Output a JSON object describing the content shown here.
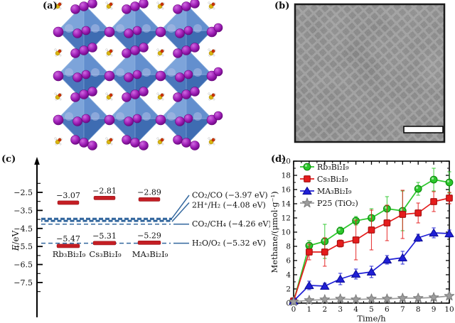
{
  "figure": {
    "panels": {
      "a": {
        "label": "(a)",
        "content": "crystal-structure",
        "colors": {
          "octahedron": "#4d7cc2",
          "octahedron_light": "#8fb2e2",
          "octahedron_mid": "#6d97d4",
          "octahedron_dark": "#2f5da5",
          "octahedron_deep": "#446fb5",
          "octahedron_edge": "#7aa2d6",
          "iodine": "#a020b8",
          "iodine_hi": "#d06ae0",
          "iodine_dark": "#69077e",
          "iodine_inner": "#aebde6",
          "cation_yellow": "#d8b511",
          "cation_red": "#cc3300",
          "cation_white": "#f5f5f5",
          "bond": "#aaaaaa"
        }
      },
      "b": {
        "label": "(b)",
        "content": "tem-image",
        "scale_bar": true,
        "colors": {
          "background": "#8b8b8b",
          "particle": "#6e6e6e",
          "border": "#1a1a1a",
          "scale_bar_fill": "#ffffff",
          "scale_bar_stroke": "#000000"
        }
      },
      "c": {
        "label": "(c)"
      },
      "d": {
        "label": "(d)"
      }
    }
  },
  "chart_data": [
    {
      "panel": "c",
      "type": "energy-levels",
      "ylabel_italic": "E",
      "ylabel_rest": "/eV",
      "yticks": [
        -2.5,
        -3.5,
        -4.5,
        -5.5,
        -6.5,
        -7.5
      ],
      "yrange": [
        -8.0,
        -2.0
      ],
      "bar_color": "#c41e24",
      "bar_edge": "#8f1218",
      "line_color": "#33679e",
      "materials": [
        {
          "id": "rb3bi2i9",
          "name": "Rb₃Bi₂I₉",
          "conduction_band_eV": -3.07,
          "valence_band_eV": -5.47
        },
        {
          "id": "cs3bi2i9",
          "name": "Cs₃Bi₂I₉",
          "conduction_band_eV": -2.81,
          "valence_band_eV": -5.31
        },
        {
          "id": "ma3bi2i9",
          "name": "MA₃Bi₂I₉",
          "conduction_band_eV": -2.89,
          "valence_band_eV": -5.29
        }
      ],
      "redox_levels": [
        {
          "label": "CO₂/CO (−3.97 eV)",
          "eV": -3.97,
          "style": "thick"
        },
        {
          "label": "2H⁺/H₂ (−4.08 eV)",
          "eV": -4.08,
          "style": "thick"
        },
        {
          "label": "CO₂/CH₄ (−4.26 eV)",
          "eV": -4.26,
          "style": "thin"
        },
        {
          "label": "H₂O/O₂ (−5.32 eV)",
          "eV": -5.32,
          "style": "thin"
        }
      ]
    },
    {
      "panel": "d",
      "type": "line",
      "xlabel": "Time/h",
      "ylabel": "Methane/(μmol·g⁻¹)",
      "xlim": [
        0,
        10
      ],
      "ylim": [
        0,
        20
      ],
      "xticks": [
        0,
        1,
        2,
        3,
        4,
        5,
        6,
        7,
        8,
        9,
        10
      ],
      "yticks": [
        0,
        2,
        4,
        6,
        8,
        10,
        12,
        14,
        16,
        18,
        20
      ],
      "grid": false,
      "legend_position": "top-left",
      "x": [
        0,
        1,
        2,
        3,
        4,
        5,
        6,
        7,
        8,
        9,
        10
      ],
      "series": [
        {
          "id": "rb3bi2i9",
          "name": "Rb₃Bi₂I₉",
          "marker": "circle",
          "color": "#2cc72c",
          "edge_color": "#0d8f0d",
          "values": [
            0.3,
            8.1,
            8.7,
            10.2,
            11.6,
            12.0,
            13.3,
            13.0,
            16.1,
            17.4,
            17.0
          ],
          "errors": [
            0.2,
            0.7,
            2.4,
            0.5,
            0.6,
            1.3,
            1.7,
            2.8,
            0.9,
            1.6,
            1.5
          ]
        },
        {
          "id": "cs3bi2i9",
          "name": "Cs₃Bi₂I₉",
          "marker": "square",
          "color": "#e51c1c",
          "edge_color": "#a40e0e",
          "values": [
            0.3,
            7.2,
            7.2,
            8.4,
            8.9,
            10.3,
            11.3,
            12.5,
            12.7,
            14.3,
            14.8
          ],
          "errors": [
            0.2,
            1.1,
            2.0,
            0.5,
            2.8,
            2.8,
            2.5,
            3.4,
            1.4,
            1.4,
            0.8
          ]
        },
        {
          "id": "ma3bi2i9",
          "name": "MA₃Bi₂I₉",
          "marker": "triangle-up",
          "color": "#1f1fd6",
          "edge_color": "#0d0d99",
          "values": [
            0.3,
            2.5,
            2.4,
            3.4,
            4.1,
            4.4,
            6.1,
            6.4,
            9.2,
            9.9,
            9.8
          ],
          "errors": [
            0.1,
            0.6,
            0.4,
            0.8,
            0.7,
            0.8,
            0.6,
            0.9,
            0.5,
            0.7,
            0.5
          ]
        },
        {
          "id": "p25-tio2",
          "name": "P25 (TiO₂)",
          "marker": "star",
          "color": "#9c9c9c",
          "edge_color": "#7e7e7e",
          "values": [
            0.2,
            0.4,
            0.5,
            0.6,
            0.5,
            0.6,
            0.6,
            0.7,
            0.7,
            0.8,
            1.0
          ],
          "errors": [
            0.1,
            0.3,
            0.3,
            0.3,
            0.3,
            0.3,
            0.3,
            0.3,
            0.3,
            0.3,
            0.4
          ]
        }
      ]
    }
  ]
}
